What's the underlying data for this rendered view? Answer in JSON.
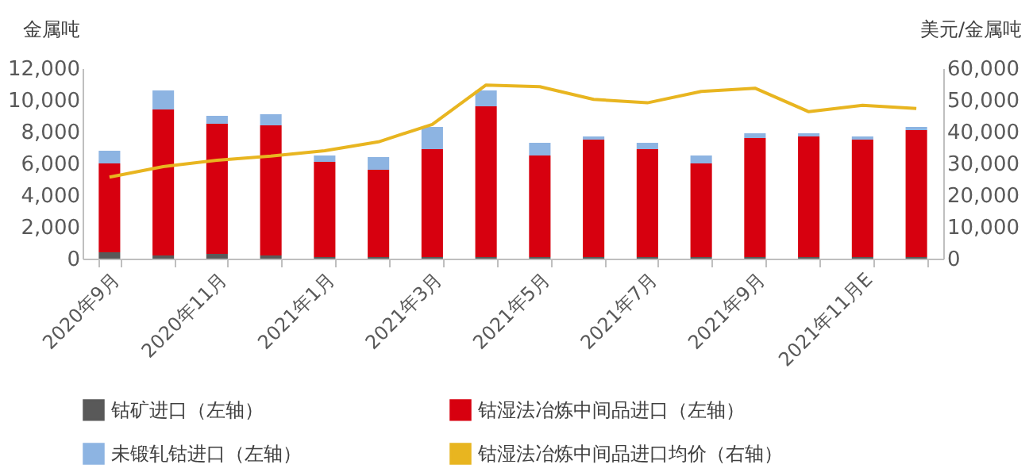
{
  "chart_data": {
    "type": "bar",
    "stacked": true,
    "categories": [
      "2020年9月",
      null,
      "2020年11月",
      null,
      "2021年1月",
      null,
      "2021年3月",
      null,
      "2021年5月",
      null,
      "2021年7月",
      null,
      "2021年9月",
      null,
      "2021年11月E",
      null
    ],
    "ylabel": "金属吨",
    "y2label": "美元/金属吨",
    "ylim": [
      0,
      12000
    ],
    "yticks": [
      0,
      {
        "value": 2000,
        "label": "2,000"
      },
      {
        "value": 4000,
        "label": "4,000"
      },
      {
        "value": 6000,
        "label": "6,000"
      },
      {
        "value": 8000,
        "label": "8,000"
      },
      {
        "value": 10000,
        "label": "10,000"
      },
      {
        "value": 12000,
        "label": "12,000"
      }
    ],
    "y2lim": [
      0,
      60000
    ],
    "y2ticks": [
      0,
      {
        "value": 10000,
        "label": "10,000"
      },
      {
        "value": 20000,
        "label": "20,000"
      },
      {
        "value": 30000,
        "label": "30,000"
      },
      {
        "value": 40000,
        "label": "40,000"
      },
      {
        "value": 50000,
        "label": "50,000"
      },
      {
        "value": 60000,
        "label": "60,000"
      }
    ],
    "legend": "bottom",
    "series": [
      {
        "name": "钴矿进口（左轴）",
        "color": "#595959",
        "values": [
          400,
          200,
          300,
          200,
          100,
          100,
          100,
          100,
          100,
          100,
          100,
          100,
          100,
          100,
          100,
          100
        ]
      },
      {
        "name": "钴湿法冶炼中间品进口（左轴）",
        "color": "#d7000f",
        "values": [
          5600,
          9200,
          8200,
          8200,
          6000,
          5500,
          6800,
          9500,
          6400,
          7400,
          6800,
          5900,
          7500,
          7600,
          7400,
          8000
        ]
      },
      {
        "name": "未锻轧钴进口（左轴）",
        "color": "#8db4e2",
        "values": [
          800,
          1200,
          500,
          700,
          400,
          800,
          1400,
          1000,
          800,
          200,
          400,
          500,
          300,
          200,
          200,
          200
        ]
      },
      {
        "name": "钴湿法冶炼中间品进口均价（右轴）",
        "type": "line",
        "axis": "y2",
        "color": "#e8b520",
        "values": [
          25700,
          29000,
          31000,
          32300,
          34000,
          36800,
          42300,
          54700,
          54200,
          50200,
          49100,
          52700,
          53700,
          46300,
          48300,
          47300
        ]
      }
    ]
  }
}
